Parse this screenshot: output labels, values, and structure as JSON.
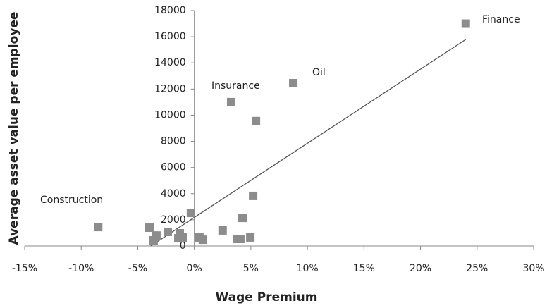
{
  "chart_data": {
    "type": "scatter",
    "x_label": "Wage Premium",
    "y_label": "Average asset value per employee",
    "color": "#8c8c8c",
    "x": [
      24.0,
      8.75,
      3.26,
      5.45,
      5.2,
      4.26,
      -0.3,
      -8.5,
      -3.97,
      -3.35,
      -3.6,
      -2.35,
      -1.29,
      -1.04,
      -1.41,
      0.45,
      0.76,
      2.5,
      3.76,
      4.07,
      4.95
    ],
    "values": [
      17000,
      12450,
      11000,
      9550,
      3830,
      2150,
      2530,
      1450,
      1400,
      800,
      430,
      1080,
      970,
      650,
      590,
      650,
      480,
      1190,
      540,
      540,
      650
    ],
    "trendline": {
      "x": [
        -3.85,
        24.0
      ],
      "y": [
        0,
        15790
      ],
      "color": "#555555"
    },
    "annotations": [
      "Finance",
      "Oil",
      "Insurance",
      "Construction"
    ],
    "xlim": [
      -15,
      30
    ],
    "xticks": [
      {
        "value": -15,
        "label": "-15%"
      },
      {
        "value": -10,
        "label": "-10%"
      },
      {
        "value": -5,
        "label": "-5%"
      },
      {
        "value": 0,
        "label": "0%"
      },
      {
        "value": 5,
        "label": "5%"
      },
      {
        "value": 10,
        "label": "10%"
      },
      {
        "value": 15,
        "label": "15%"
      },
      {
        "value": 20,
        "label": "20%"
      },
      {
        "value": 25,
        "label": "25%"
      },
      {
        "value": 30,
        "label": "30%"
      }
    ],
    "ylim": [
      0,
      18000
    ],
    "yticks": [
      0,
      2000,
      4000,
      6000,
      8000,
      10000,
      12000,
      14000,
      16000,
      18000
    ]
  }
}
